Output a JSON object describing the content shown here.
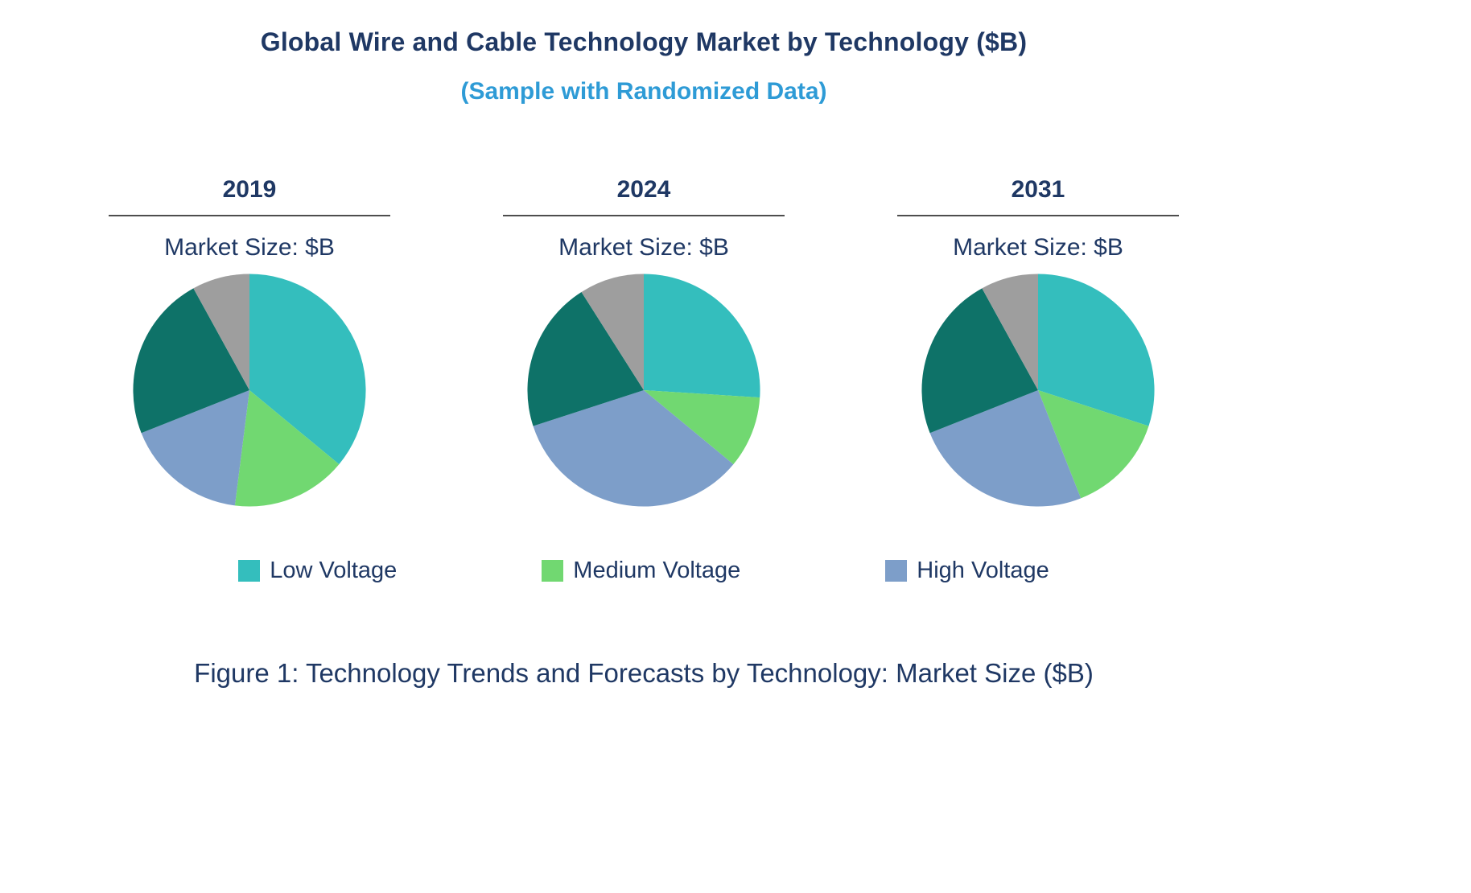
{
  "title": "Global Wire and Cable Technology Market by Technology ($B)",
  "subtitle": "(Sample with Randomized Data)",
  "caption": "Figure 1: Technology Trends and Forecasts by Technology: Market Size ($B)",
  "colors": {
    "title_navy": "#1f3864",
    "subtitle_blue": "#2e9bd6",
    "low_voltage": "#34bebd",
    "medium_voltage": "#71d871",
    "high_voltage": "#7d9ec9",
    "dark_teal_segment": "#0e7268",
    "gray_segment": "#9e9e9e"
  },
  "legend": [
    {
      "label": "Low Voltage",
      "color": "#34bebd"
    },
    {
      "label": "Medium Voltage",
      "color": "#71d871"
    },
    {
      "label": "High Voltage",
      "color": "#7d9ec9"
    }
  ],
  "chart_data": [
    {
      "type": "pie",
      "title": "2019",
      "unit_label": "Market Size: $B",
      "legend_position": "bottom",
      "slices": [
        {
          "label": "Low Voltage",
          "value": 36,
          "color": "#34bebd"
        },
        {
          "label": "Medium Voltage",
          "value": 16,
          "color": "#71d871"
        },
        {
          "label": "High Voltage",
          "value": 17,
          "color": "#7d9ec9"
        },
        {
          "label": "",
          "value": 23,
          "color": "#0e7268"
        },
        {
          "label": "",
          "value": 8,
          "color": "#9e9e9e"
        }
      ]
    },
    {
      "type": "pie",
      "title": "2024",
      "unit_label": "Market Size: $B",
      "legend_position": "bottom",
      "slices": [
        {
          "label": "Low Voltage",
          "value": 26,
          "color": "#34bebd"
        },
        {
          "label": "Medium Voltage",
          "value": 10,
          "color": "#71d871"
        },
        {
          "label": "High Voltage",
          "value": 34,
          "color": "#7d9ec9"
        },
        {
          "label": "",
          "value": 21,
          "color": "#0e7268"
        },
        {
          "label": "",
          "value": 9,
          "color": "#9e9e9e"
        }
      ]
    },
    {
      "type": "pie",
      "title": "2031",
      "unit_label": "Market Size: $B",
      "legend_position": "bottom",
      "slices": [
        {
          "label": "Low Voltage",
          "value": 30,
          "color": "#34bebd"
        },
        {
          "label": "Medium Voltage",
          "value": 14,
          "color": "#71d871"
        },
        {
          "label": "High Voltage",
          "value": 25,
          "color": "#7d9ec9"
        },
        {
          "label": "",
          "value": 23,
          "color": "#0e7268"
        },
        {
          "label": "",
          "value": 8,
          "color": "#9e9e9e"
        }
      ]
    }
  ]
}
